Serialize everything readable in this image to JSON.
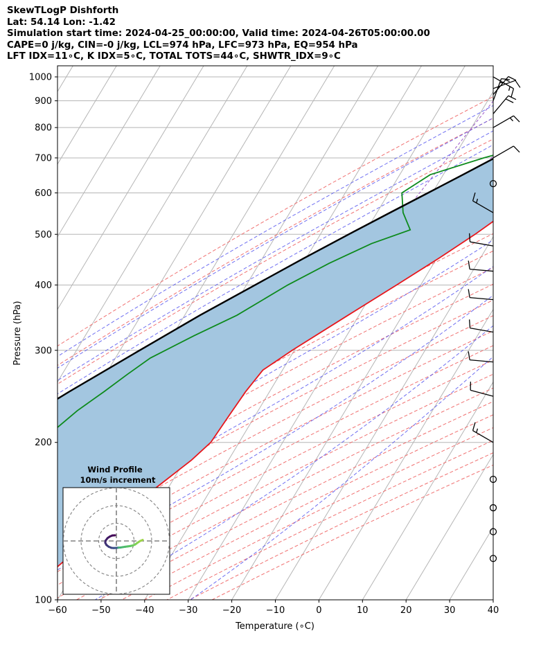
{
  "header": {
    "line1": "SkewTLogP Dishforth",
    "line2": "Lat: 54.14   Lon: -1.42",
    "line3": "Simulation start time: 2024-04-25_00:00:00, Valid time: 2024-04-26T05:00:00.00",
    "line4": "CAPE=0 j/kg, CIN=-0 j/kg, LCL=974 hPa, LFC=973 hPa, EQ=954 hPa",
    "line5": "LFT IDX=11∘C, K IDX=5∘C, TOTAL TOTS=44∘C, SHWTR_IDX=9∘C"
  },
  "chart_data": {
    "type": "line",
    "diagram": "skew-T log-P",
    "xlabel": "Temperature (∘C)",
    "ylabel": "Pressure (hPa)",
    "xlim": [
      -60,
      40
    ],
    "ylim": [
      1050,
      100
    ],
    "y_scale": "log",
    "x_ticks": [
      -60,
      -50,
      -40,
      -30,
      -20,
      -10,
      0,
      10,
      20,
      30,
      40
    ],
    "x_tick_labels": [
      "−60",
      "−50",
      "−40",
      "−30",
      "−20",
      "−10",
      "0",
      "10",
      "20",
      "30",
      "40"
    ],
    "y_ticks": [
      1000,
      900,
      800,
      700,
      600,
      500,
      400,
      300,
      200,
      100
    ],
    "y_tick_labels": [
      "1000",
      "900",
      "800",
      "700",
      "600",
      "500",
      "400",
      "300",
      "200",
      "100"
    ],
    "grid": true,
    "colors": {
      "temperature": "#e8161b",
      "dewpoint": "#0d8a1c",
      "parcel": "#000000",
      "cape_fill": "#a3c6e0",
      "isotherm": "#b5b5b5",
      "dry_adiabat": "#f07070",
      "moist_adiabat": "#5555ee",
      "mixing_ratio": "#9a55c8"
    },
    "series": [
      {
        "role": "temperature",
        "points": [
          {
            "p": 1000,
            "t": 4.0
          },
          {
            "p": 950,
            "t": 3.5
          },
          {
            "p": 925,
            "t": 3.2
          },
          {
            "p": 900,
            "t": 2.0
          },
          {
            "p": 850,
            "t": 0.5
          },
          {
            "p": 800,
            "t": -0.8
          },
          {
            "p": 750,
            "t": -1.8
          },
          {
            "p": 700,
            "t": -2.8
          },
          {
            "p": 650,
            "t": -4.5
          },
          {
            "p": 600,
            "t": -7.5
          },
          {
            "p": 550,
            "t": -10.5
          },
          {
            "p": 500,
            "t": -14.5
          },
          {
            "p": 450,
            "t": -19.5
          },
          {
            "p": 400,
            "t": -25.5
          },
          {
            "p": 350,
            "t": -32.5
          },
          {
            "p": 300,
            "t": -40.5
          },
          {
            "p": 275,
            "t": -44.5
          },
          {
            "p": 250,
            "t": -45.5
          },
          {
            "p": 225,
            "t": -46.0
          },
          {
            "p": 200,
            "t": -46.5
          },
          {
            "p": 185,
            "t": -48.5
          },
          {
            "p": 170,
            "t": -51.5
          },
          {
            "p": 150,
            "t": -56.0
          },
          {
            "p": 140,
            "t": -58.0
          },
          {
            "p": 130,
            "t": -61.5
          },
          {
            "p": 120,
            "t": -63.5
          },
          {
            "p": 110,
            "t": -66.0
          },
          {
            "p": 100,
            "t": -68.5
          }
        ]
      },
      {
        "role": "dewpoint",
        "points": [
          {
            "p": 1000,
            "t": 2.5
          },
          {
            "p": 950,
            "t": 3.0
          },
          {
            "p": 925,
            "t": 3.0
          },
          {
            "p": 900,
            "t": 1.0
          },
          {
            "p": 850,
            "t": -1.0
          },
          {
            "p": 800,
            "t": -4.0
          },
          {
            "p": 750,
            "t": -12.0
          },
          {
            "p": 700,
            "t": -23.0
          },
          {
            "p": 650,
            "t": -33.0
          },
          {
            "p": 600,
            "t": -37.0
          },
          {
            "p": 550,
            "t": -34.0
          },
          {
            "p": 510,
            "t": -30.0
          },
          {
            "p": 480,
            "t": -37.0
          },
          {
            "p": 440,
            "t": -44.0
          },
          {
            "p": 400,
            "t": -50.5
          },
          {
            "p": 350,
            "t": -58.0
          },
          {
            "p": 320,
            "t": -65.0
          },
          {
            "p": 290,
            "t": -72.0
          },
          {
            "p": 270,
            "t": -75.0
          },
          {
            "p": 250,
            "t": -78.0
          },
          {
            "p": 230,
            "t": -81.5
          },
          {
            "p": 205,
            "t": -85.0
          },
          {
            "p": 190,
            "t": -90.0
          },
          {
            "p": 150,
            "t": -90.0
          },
          {
            "p": 125,
            "t": -92.0
          },
          {
            "p": 100,
            "t": -93.0
          }
        ]
      },
      {
        "role": "parcel",
        "points": [
          {
            "p": 1000,
            "t": 4.0
          },
          {
            "p": 975,
            "t": 2.0
          },
          {
            "p": 950,
            "t": 0.0
          },
          {
            "p": 900,
            "t": -4.0
          },
          {
            "p": 850,
            "t": -7.5
          },
          {
            "p": 800,
            "t": -11.5
          },
          {
            "p": 750,
            "t": -16.0
          },
          {
            "p": 700,
            "t": -20.5
          },
          {
            "p": 650,
            "t": -25.5
          },
          {
            "p": 600,
            "t": -31.0
          },
          {
            "p": 550,
            "t": -37.0
          },
          {
            "p": 500,
            "t": -43.5
          },
          {
            "p": 450,
            "t": -50.5
          },
          {
            "p": 400,
            "t": -58.0
          },
          {
            "p": 350,
            "t": -66.5
          },
          {
            "p": 300,
            "t": -75.5
          },
          {
            "p": 250,
            "t": -86.0
          },
          {
            "p": 200,
            "t": -98.0
          },
          {
            "p": 150,
            "t": -113.0
          },
          {
            "p": 125,
            "t": -122.5
          },
          {
            "p": 100,
            "t": -133.0
          }
        ]
      }
    ],
    "wind_barbs": [
      {
        "p": 1000,
        "speed_kt": 15,
        "dir_deg": 120
      },
      {
        "p": 950,
        "speed_kt": 10,
        "dir_deg": 70
      },
      {
        "p": 925,
        "speed_kt": 15,
        "dir_deg": 40
      },
      {
        "p": 900,
        "speed_kt": 15,
        "dir_deg": 20
      },
      {
        "p": 850,
        "speed_kt": 20,
        "dir_deg": 40
      },
      {
        "p": 800,
        "speed_kt": 15,
        "dir_deg": 60
      },
      {
        "p": 700,
        "speed_kt": 10,
        "dir_deg": 60
      },
      {
        "p": 625,
        "speed_kt": 0,
        "dir_deg": 0
      },
      {
        "p": 550,
        "speed_kt": 15,
        "dir_deg": 300
      },
      {
        "p": 475,
        "speed_kt": 10,
        "dir_deg": 280
      },
      {
        "p": 425,
        "speed_kt": 10,
        "dir_deg": 275
      },
      {
        "p": 375,
        "speed_kt": 10,
        "dir_deg": 275
      },
      {
        "p": 325,
        "speed_kt": 10,
        "dir_deg": 280
      },
      {
        "p": 285,
        "speed_kt": 10,
        "dir_deg": 275
      },
      {
        "p": 245,
        "speed_kt": 10,
        "dir_deg": 285
      },
      {
        "p": 200,
        "speed_kt": 15,
        "dir_deg": 300
      },
      {
        "p": 170,
        "speed_kt": 0,
        "dir_deg": 0
      },
      {
        "p": 150,
        "speed_kt": 0,
        "dir_deg": 0
      },
      {
        "p": 135,
        "speed_kt": 0,
        "dir_deg": 0
      },
      {
        "p": 120,
        "speed_kt": 0,
        "dir_deg": 0
      }
    ],
    "hodograph": {
      "title_line1": "Wind Profile",
      "title_line2": "10m/s increment",
      "ring_count": 3,
      "colormap": [
        "#440154",
        "#3b528b",
        "#21918c",
        "#5ec962",
        "#fde725"
      ],
      "trace": [
        {
          "u": -0.8,
          "v": 3.2
        },
        {
          "u": -2.3,
          "v": 3.1
        },
        {
          "u": -3.7,
          "v": 2.5
        },
        {
          "u": -5.0,
          "v": 1.6
        },
        {
          "u": -6.1,
          "v": 0.2
        },
        {
          "u": -6.3,
          "v": -1.0
        },
        {
          "u": -5.6,
          "v": -2.3
        },
        {
          "u": -4.3,
          "v": -3.3
        },
        {
          "u": -2.8,
          "v": -3.9
        },
        {
          "u": -1.4,
          "v": -4.0
        },
        {
          "u": 0.0,
          "v": -3.9
        },
        {
          "u": 1.2,
          "v": -3.8
        },
        {
          "u": 2.4,
          "v": -3.7
        },
        {
          "u": 3.6,
          "v": -3.5
        },
        {
          "u": 5.0,
          "v": -3.3
        },
        {
          "u": 6.4,
          "v": -3.1
        },
        {
          "u": 7.8,
          "v": -2.9
        },
        {
          "u": 9.2,
          "v": -2.6
        },
        {
          "u": 10.6,
          "v": -2.0
        },
        {
          "u": 12.0,
          "v": -1.0
        },
        {
          "u": 13.5,
          "v": 0.0
        },
        {
          "u": 14.9,
          "v": 0.6
        }
      ]
    }
  }
}
